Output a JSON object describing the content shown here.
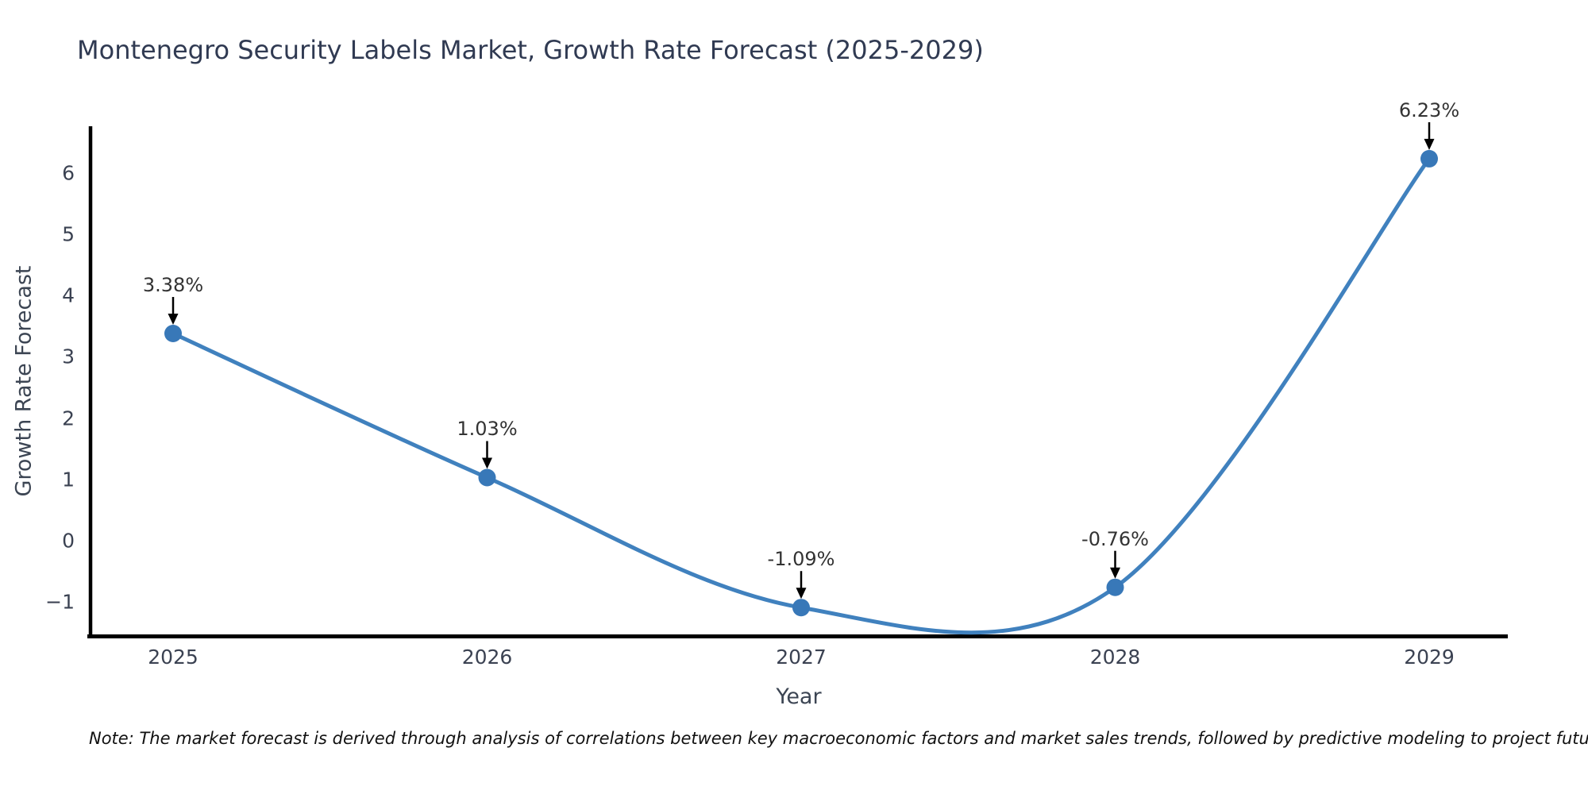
{
  "title": "Montenegro Security Labels Market, Growth Rate Forecast (2025-2029)",
  "note": "Note: The market forecast is derived through analysis of correlations between key macroeconomic factors and market sales trends, followed by predictive modeling to project future sales",
  "chart_data": {
    "type": "line",
    "title": "Montenegro Security Labels Market, Growth Rate Forecast (2025-2029)",
    "xlabel": "Year",
    "ylabel": "Growth Rate Forecast",
    "x": [
      2025,
      2026,
      2027,
      2028,
      2029
    ],
    "values": [
      3.38,
      1.03,
      -1.09,
      -0.76,
      6.23
    ],
    "point_labels": [
      "3.38%",
      "1.03%",
      "-1.09%",
      "-0.76%",
      "6.23%"
    ],
    "xtick_labels": [
      "2025",
      "2026",
      "2027",
      "2028",
      "2029"
    ],
    "ytick_values": [
      6,
      5,
      4,
      3,
      2,
      1,
      0,
      -1
    ],
    "ytick_labels": [
      "6",
      "5",
      "4",
      "3",
      "2",
      "1",
      "0",
      "−1"
    ],
    "ylim": [
      -1.56,
      6.76
    ],
    "grid": false,
    "legend": "none",
    "smooth_curve": true,
    "colors": {
      "line": "#4081be",
      "marker": "#3878b8",
      "axis": "#000000",
      "arrow": "#000000",
      "annotation_text": "#333333"
    }
  }
}
